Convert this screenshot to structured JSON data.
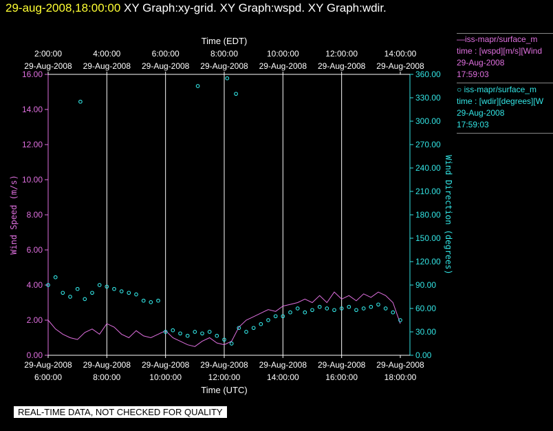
{
  "header": {
    "datetime": "29-aug-2008,18:00:00",
    "graphs": "XY Graph:xy-grid.  XY Graph:wspd.  XY Graph:wdir."
  },
  "legend": {
    "wspd": {
      "line1": "—iss-mapr/surface_m",
      "line2": "time : [wspd][m/s][Wind",
      "line3": "29-Aug-2008",
      "line4": "17:59:03"
    },
    "wdir": {
      "line1": "○ iss-mapr/surface_m",
      "line2": "time : [wdir][degrees][W",
      "line3": "29-Aug-2008",
      "line4": "17:59:03"
    }
  },
  "disclaimer": "REAL-TIME DATA, NOT CHECKED FOR QUALITY",
  "colors": {
    "wspd": "#e070e0",
    "wdir": "#33e6e6",
    "grid": "#ffffff"
  },
  "chart_data": {
    "type": "line",
    "top_axis": {
      "label": "Time (EDT)",
      "ticks": [
        "2:00:00",
        "4:00:00",
        "6:00:00",
        "8:00:00",
        "10:00:00",
        "12:00:00",
        "14:00:00"
      ],
      "date": "29-Aug-2008"
    },
    "bottom_axis": {
      "label": "Time (UTC)",
      "ticks": [
        "6:00:00",
        "8:00:00",
        "10:00:00",
        "12:00:00",
        "14:00:00",
        "16:00:00",
        "18:00:00"
      ],
      "date": "29-Aug-2008"
    },
    "xlim_hours_utc": [
      6,
      18
    ],
    "left_axis": {
      "label": "Wind Speed (m/s)",
      "ticks": [
        "0.00",
        "2.00",
        "4.00",
        "6.00",
        "8.00",
        "10.00",
        "12.00",
        "14.00",
        "16.00"
      ],
      "ylim": [
        0,
        16
      ]
    },
    "right_axis": {
      "label": "Wind Direction (degrees)",
      "ticks": [
        "0.00",
        "30.00",
        "60.00",
        "90.00",
        "120.00",
        "150.00",
        "180.00",
        "210.00",
        "240.00",
        "270.00",
        "300.00",
        "330.00",
        "360.00"
      ],
      "ylim": [
        0,
        360
      ]
    },
    "series": [
      {
        "name": "wspd",
        "style": "line",
        "x": [
          6.0,
          6.25,
          6.5,
          6.75,
          7.0,
          7.25,
          7.5,
          7.75,
          8.0,
          8.25,
          8.5,
          8.75,
          9.0,
          9.25,
          9.5,
          9.75,
          10.0,
          10.25,
          10.5,
          10.75,
          11.0,
          11.25,
          11.5,
          11.75,
          12.0,
          12.25,
          12.5,
          12.75,
          13.0,
          13.25,
          13.5,
          13.75,
          14.0,
          14.25,
          14.5,
          14.75,
          15.0,
          15.25,
          15.5,
          15.75,
          16.0,
          16.25,
          16.5,
          16.75,
          17.0,
          17.25,
          17.5,
          17.75,
          18.0
        ],
        "values": [
          2.0,
          1.5,
          1.2,
          1.0,
          0.9,
          1.3,
          1.5,
          1.2,
          1.8,
          1.6,
          1.2,
          1.0,
          1.4,
          1.1,
          1.0,
          1.2,
          1.4,
          1.0,
          0.8,
          0.6,
          0.5,
          0.8,
          1.0,
          0.7,
          0.6,
          0.8,
          1.6,
          2.0,
          2.2,
          2.4,
          2.6,
          2.5,
          2.8,
          2.9,
          3.0,
          3.2,
          3.0,
          3.4,
          3.0,
          3.6,
          3.2,
          3.4,
          3.1,
          3.5,
          3.3,
          3.6,
          3.4,
          3.0,
          1.8
        ]
      },
      {
        "name": "wdir",
        "style": "points",
        "x": [
          6.0,
          6.25,
          6.5,
          6.75,
          7.0,
          7.1,
          7.25,
          7.5,
          7.75,
          8.0,
          8.25,
          8.5,
          8.75,
          9.0,
          9.25,
          9.5,
          9.75,
          10.0,
          10.25,
          10.5,
          10.75,
          11.0,
          11.1,
          11.25,
          11.5,
          11.75,
          12.0,
          12.1,
          12.25,
          12.4,
          12.5,
          12.75,
          13.0,
          13.25,
          13.5,
          13.75,
          14.0,
          14.25,
          14.5,
          14.75,
          15.0,
          15.25,
          15.5,
          15.75,
          16.0,
          16.25,
          16.5,
          16.75,
          17.0,
          17.25,
          17.5,
          17.75,
          18.0
        ],
        "values": [
          90,
          100,
          80,
          75,
          85,
          325,
          72,
          80,
          90,
          88,
          85,
          82,
          80,
          78,
          70,
          68,
          70,
          30,
          32,
          28,
          25,
          30,
          345,
          28,
          30,
          25,
          20,
          355,
          15,
          335,
          35,
          30,
          35,
          40,
          45,
          50,
          50,
          55,
          60,
          55,
          58,
          62,
          60,
          58,
          60,
          62,
          58,
          60,
          62,
          65,
          60,
          55,
          45
        ]
      }
    ]
  }
}
